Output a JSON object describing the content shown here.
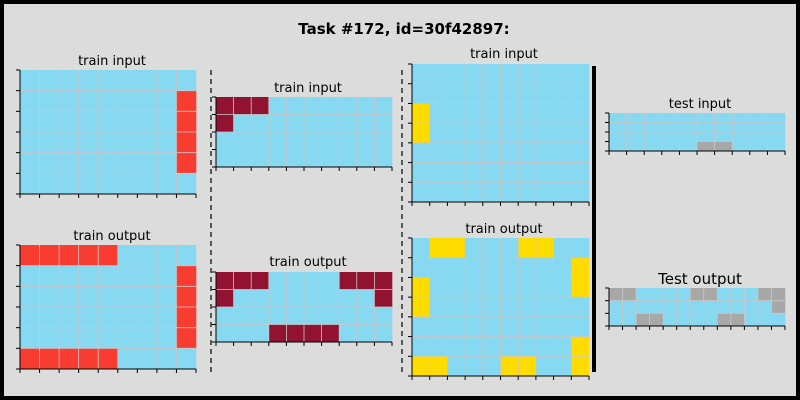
{
  "title": "Task #172, id=30f42897:",
  "colors": {
    "0": "#000000",
    "1": "#1e93ff",
    "2": "#f93c31",
    "3": "#4fcc30",
    "4": "#ffdc00",
    "5": "#999999",
    "6": "#e53aa3",
    "7": "#ff851b",
    "8": "#87d8f1",
    "9": "#921231",
    "grey_cell": "#a8a8a8",
    "gridline": "#c8c8c8",
    "bg": "#dcdcdc"
  },
  "panels": [
    {
      "label": "train input",
      "grid": [
        "888888888",
        "888888882",
        "888888882",
        "888888882",
        "888888882",
        "888888888"
      ]
    },
    {
      "label": "train output",
      "grid": [
        "222228888",
        "888888882",
        "888888882",
        "888888882",
        "888888882",
        "222228888"
      ]
    },
    {
      "label": "train input",
      "grid": [
        "9998888888",
        "9888888888",
        "8888888888",
        "8888888888"
      ]
    },
    {
      "label": "train output",
      "grid": [
        "9998888999",
        "9888888889",
        "8888888888",
        "8889999888"
      ]
    },
    {
      "label": "train input",
      "grid": [
        "8888888888",
        "8888888888",
        "4888888888",
        "4888888888",
        "8888888888",
        "8888888888",
        "8888888888"
      ]
    },
    {
      "label": "train output",
      "grid": [
        "8448884488",
        "8888888884",
        "4888888884",
        "4888888888",
        "8888888888",
        "8888888884",
        "4488844884"
      ]
    },
    {
      "label": "test input",
      "grid": [
        "8888888888",
        "8888888888",
        "8888888888",
        "8888855888"
      ]
    },
    {
      "label": "Test output",
      "grid": [
        "5588885588855",
        "8888888888885",
        "8855888855888"
      ]
    }
  ]
}
